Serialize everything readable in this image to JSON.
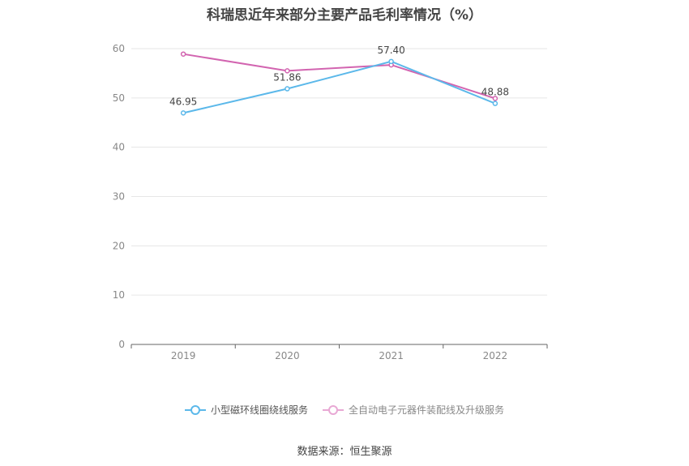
{
  "chart_data": {
    "type": "line",
    "title": "科瑞思近年来部分主要产品毛利率情况（%）",
    "categories": [
      "2019",
      "2020",
      "2021",
      "2022"
    ],
    "ylim": [
      0,
      60
    ],
    "yticks": [
      0,
      10,
      20,
      30,
      40,
      50,
      60
    ],
    "grid": true,
    "legend_position": "bottom",
    "series": [
      {
        "name": "小型磁环线圈绕线服务",
        "color": "#5bb8ea",
        "values": [
          46.95,
          51.86,
          57.4,
          48.88
        ],
        "labels": [
          "46.95",
          "51.86",
          "57.40",
          "48.88"
        ]
      },
      {
        "name": "全自动电子元器件装配线及升级服务",
        "color": "#d264b0",
        "values": [
          58.9,
          55.5,
          56.7,
          49.9
        ]
      }
    ],
    "source": "数据来源：恒生聚源"
  }
}
